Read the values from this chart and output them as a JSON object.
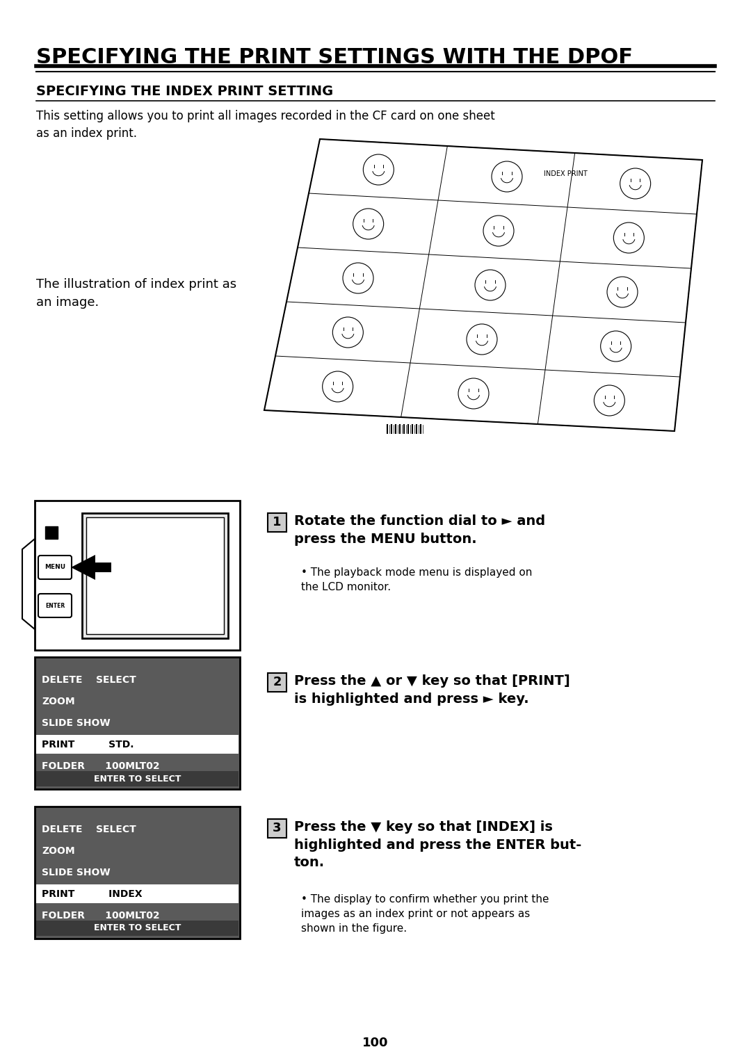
{
  "bg_color": "#ffffff",
  "main_title": "SPECIFYING THE PRINT SETTINGS WITH THE DPOF",
  "section_title": "SPECIFYING THE INDEX PRINT SETTING",
  "intro_text": "This setting allows you to print all images recorded in the CF card on one sheet\nas an index print.",
  "illus_caption": "The illustration of index print as\nan image.",
  "step1_number": "1",
  "step1_bold": "Rotate the function dial to ► and\npress the MENU button.",
  "step1_bullet": "The playback mode menu is displayed on\nthe LCD monitor.",
  "step2_number": "2",
  "step2_bold": "Press the ▲ or ▼ key so that [PRINT]\nis highlighted and press ► key.",
  "step3_number": "3",
  "step3_bold": "Press the ▼ key so that [INDEX] is\nhighlighted and press the ENTER but-\nton.",
  "step3_bullet": "The display to confirm whether you print the\nimages as an index print or not appears as\nshown in the figure.",
  "menu1_rows": [
    "DELETE    SELECT",
    "ZOOM",
    "SLIDE SHOW",
    "PRINT          STD.",
    "FOLDER      100MLT02"
  ],
  "menu1_highlight": 3,
  "menu1_footer": "ENTER TO SELECT",
  "menu2_rows": [
    "DELETE    SELECT",
    "ZOOM",
    "SLIDE SHOW",
    "PRINT          INDEX",
    "FOLDER      100MLT02"
  ],
  "menu2_highlight": 3,
  "menu2_footer": "ENTER TO SELECT",
  "page_number": "100"
}
